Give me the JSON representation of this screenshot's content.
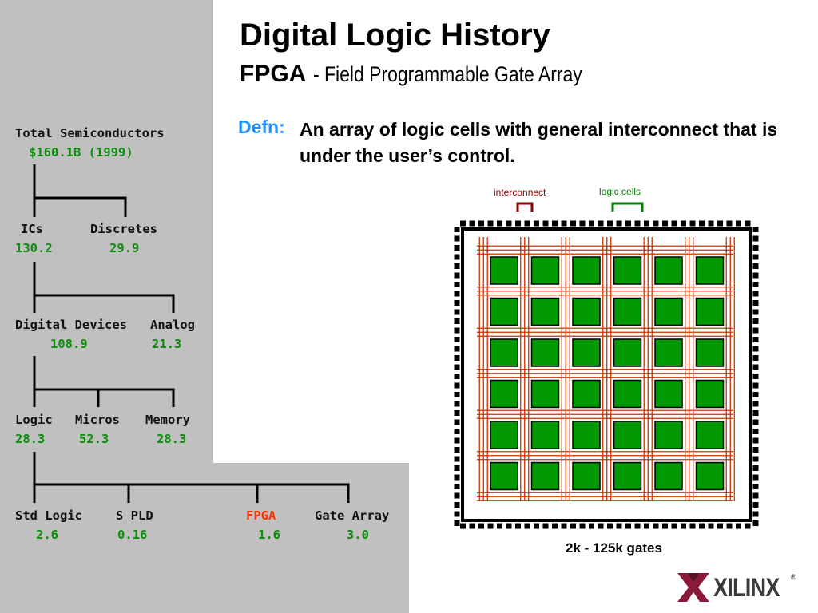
{
  "title": "Digital Logic History",
  "subtitle": {
    "acronym": "FPGA",
    "expansion": "- Field Programmable Gate Array"
  },
  "definition": {
    "label": "Defn:",
    "text": "An array of logic cells with general interconnect that is under the user’s control."
  },
  "tree": {
    "root": {
      "label": "Total Semiconductors",
      "value": "$160.1B (1999)"
    },
    "level1": [
      {
        "label": "ICs",
        "value": "130.2"
      },
      {
        "label": "Discretes",
        "value": "29.9"
      }
    ],
    "level2": [
      {
        "label": "Digital Devices",
        "value": "108.9"
      },
      {
        "label": "Analog",
        "value": "21.3"
      }
    ],
    "level3": [
      {
        "label": "Logic",
        "value": "28.3"
      },
      {
        "label": "Micros",
        "value": "52.3"
      },
      {
        "label": "Memory",
        "value": "28.3"
      }
    ],
    "level4": [
      {
        "label": "Std Logic",
        "value": "2.6"
      },
      {
        "label": "S PLD",
        "value": "0.16"
      },
      {
        "label": "FPGA",
        "value": "1.6"
      },
      {
        "label": "Gate Array",
        "value": "3.0"
      }
    ]
  },
  "fpga_diagram": {
    "interconnect_label": "interconnect",
    "logic_cells_label": "logic cells",
    "capacity": "2k - 125k gates",
    "cell_grid": {
      "rows": 6,
      "cols": 6
    },
    "colors": {
      "cell": "#009900",
      "interconnect": "#cc3300",
      "pad": "#000000"
    }
  },
  "logo": {
    "name": "XILINX",
    "mark": "®"
  },
  "colors": {
    "value": "#0a8f0a",
    "highlight": "#ff3300",
    "defn": "#1e90ff",
    "sidebar": "#c0c0c0"
  }
}
